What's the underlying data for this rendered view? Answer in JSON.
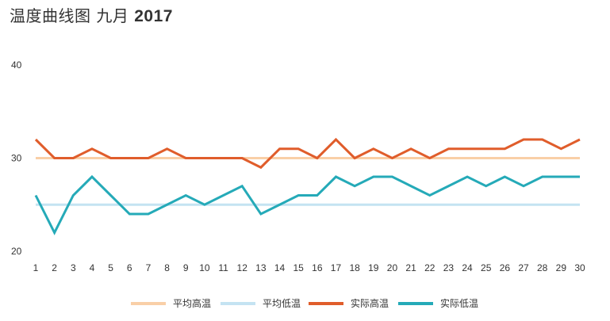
{
  "chart_data": {
    "type": "line",
    "title": "温度曲线图 九月",
    "title_year": "2017",
    "x": [
      1,
      2,
      3,
      4,
      5,
      6,
      7,
      8,
      9,
      10,
      11,
      12,
      13,
      14,
      15,
      16,
      17,
      18,
      19,
      20,
      21,
      22,
      23,
      24,
      25,
      26,
      27,
      28,
      29,
      30
    ],
    "ylim": [
      20,
      40
    ],
    "yticks": [
      20,
      30,
      40
    ],
    "grid": false,
    "legend_position": "bottom",
    "series": [
      {
        "name": "平均高温",
        "color": "#f9cfa7",
        "values": [
          30,
          30,
          30,
          30,
          30,
          30,
          30,
          30,
          30,
          30,
          30,
          30,
          30,
          30,
          30,
          30,
          30,
          30,
          30,
          30,
          30,
          30,
          30,
          30,
          30,
          30,
          30,
          30,
          30,
          30
        ]
      },
      {
        "name": "平均低温",
        "color": "#c4e3f2",
        "values": [
          25,
          25,
          25,
          25,
          25,
          25,
          25,
          25,
          25,
          25,
          25,
          25,
          25,
          25,
          25,
          25,
          25,
          25,
          25,
          25,
          25,
          25,
          25,
          25,
          25,
          25,
          25,
          25,
          25,
          25
        ]
      },
      {
        "name": "实际高温",
        "color": "#e05d2b",
        "values": [
          32,
          30,
          30,
          31,
          30,
          30,
          30,
          31,
          30,
          30,
          30,
          30,
          29,
          31,
          31,
          30,
          32,
          30,
          31,
          30,
          31,
          30,
          31,
          31,
          31,
          31,
          32,
          32,
          31,
          32
        ]
      },
      {
        "name": "实际低温",
        "color": "#25aab8",
        "values": [
          26,
          22,
          26,
          28,
          26,
          24,
          24,
          25,
          26,
          25,
          26,
          27,
          24,
          25,
          26,
          26,
          28,
          27,
          28,
          28,
          27,
          26,
          27,
          28,
          27,
          28,
          27,
          28,
          28,
          28
        ]
      }
    ]
  }
}
